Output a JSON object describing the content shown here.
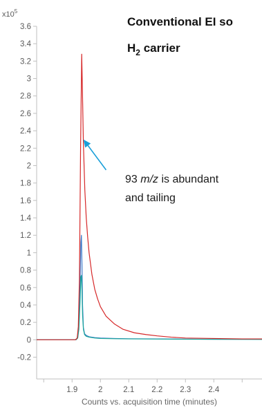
{
  "chart_data": {
    "type": "line",
    "title_line1": "Conventional EI so",
    "title_line2_main": "H",
    "title_line2_sub": "2",
    "title_line2_rest": " carrier",
    "y_multiplier_base": "x10",
    "y_multiplier_exp": "5",
    "xlabel": "Counts vs. acquisition time (minutes)",
    "ylabel": "",
    "xlim": [
      1.775,
      2.57
    ],
    "ylim": [
      -0.45,
      3.6
    ],
    "x_ticks": [
      1.8,
      1.9,
      2.0,
      2.1,
      2.2,
      2.3,
      2.4,
      2.5
    ],
    "x_tick_labels": [
      "",
      "1.9",
      "2",
      "2.1",
      "2.2",
      "2.3",
      "2.4",
      ""
    ],
    "y_ticks": [
      -0.2,
      0,
      0.2,
      0.4,
      0.6,
      0.8,
      1,
      1.2,
      1.4,
      1.6,
      1.8,
      2,
      2.2,
      2.4,
      2.6,
      2.8,
      3,
      3.2,
      3.4,
      3.6
    ],
    "y_tick_labels": [
      "-0.2",
      "0",
      "0.2",
      "0.4",
      "0.6",
      "0.8",
      "1",
      "1.2",
      "1.4",
      "1.6",
      "1.8",
      "2",
      "2.2",
      "2.4",
      "2.6",
      "2.8",
      "3",
      "3.2",
      "3.4",
      "3.6"
    ],
    "grid": false,
    "annotation": {
      "text_line1_prefix": "93 ",
      "text_line1_italic": "m/z",
      "text_line1_suffix": " is abundant",
      "text_line2": "and tailing",
      "arrow_to": {
        "x": 1.94,
        "y": 2.3
      },
      "arrow_from": {
        "x": 2.02,
        "y": 1.95
      },
      "color": "#1a9fd9"
    },
    "series": [
      {
        "color": "#d62728",
        "x": [
          1.775,
          1.9,
          1.912,
          1.918,
          1.922,
          1.926,
          1.93,
          1.934,
          1.936,
          1.94,
          1.945,
          1.95,
          1.955,
          1.96,
          1.97,
          1.98,
          1.99,
          2.0,
          2.02,
          2.05,
          2.08,
          2.12,
          2.16,
          2.2,
          2.25,
          2.3,
          2.4,
          2.5,
          2.57
        ],
        "values": [
          0.0,
          0.0,
          0.0,
          0.02,
          0.15,
          0.7,
          2.2,
          3.28,
          2.95,
          2.25,
          1.72,
          1.4,
          1.18,
          1.0,
          0.75,
          0.58,
          0.47,
          0.38,
          0.27,
          0.18,
          0.12,
          0.08,
          0.06,
          0.045,
          0.03,
          0.02,
          0.015,
          0.01,
          0.01
        ]
      },
      {
        "color": "#3a78c9",
        "x": [
          1.775,
          1.905,
          1.914,
          1.92,
          1.924,
          1.928,
          1.931,
          1.933,
          1.935,
          1.937,
          1.94,
          1.944,
          1.95,
          1.96,
          1.98,
          2.0,
          2.05,
          2.1,
          2.2,
          2.3,
          2.4,
          2.57
        ],
        "values": [
          0.0,
          0.0,
          0.0,
          0.03,
          0.2,
          0.65,
          1.12,
          1.2,
          0.85,
          0.4,
          0.14,
          0.07,
          0.05,
          0.035,
          0.025,
          0.02,
          0.015,
          0.012,
          0.01,
          0.008,
          0.006,
          0.005
        ]
      },
      {
        "color": "#1aa89a",
        "x": [
          1.775,
          1.905,
          1.914,
          1.92,
          1.924,
          1.928,
          1.931,
          1.933,
          1.935,
          1.937,
          1.94,
          1.944,
          1.95,
          1.96,
          1.98,
          2.0,
          2.05,
          2.1,
          2.2,
          2.3,
          2.4,
          2.57
        ],
        "values": [
          0.0,
          0.0,
          0.0,
          0.02,
          0.12,
          0.42,
          0.72,
          0.74,
          0.55,
          0.28,
          0.12,
          0.06,
          0.04,
          0.03,
          0.02,
          0.015,
          0.012,
          0.01,
          0.008,
          0.006,
          0.005,
          0.004
        ]
      }
    ]
  }
}
